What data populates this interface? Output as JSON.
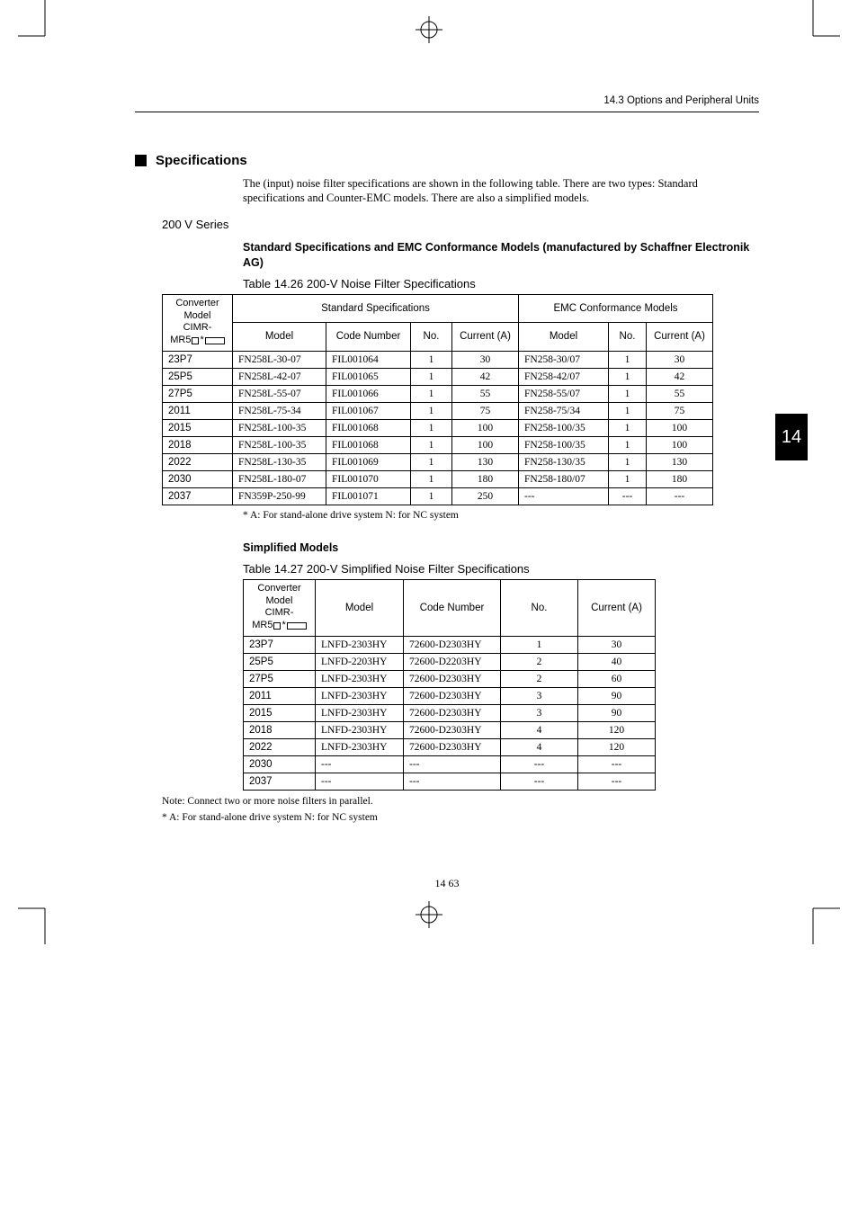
{
  "header": {
    "section_ref": "14.3 Options and Peripheral Units"
  },
  "section": {
    "title": "Specifications"
  },
  "intro": "The (input) noise filter specifications are shown in the following table. There are two types: Standard specifications and Counter-EMC models. There are also a simplified models.",
  "series_label": "200 V Series",
  "table1": {
    "subhead": "Standard Specifications and EMC Conformance Models (manufactured by Schaffner Electronik AG)",
    "caption": "Table 14.26  200-V Noise Filter Specifications",
    "group_headers": {
      "std": "Standard Specifications",
      "emc": "EMC Conformance Models"
    },
    "col_headers": {
      "converter_l1": "Converter",
      "converter_l2": "Model",
      "converter_l3": "CIMR-",
      "converter_l4_prefix": "MR5",
      "model": "Model",
      "code": "Code Number",
      "no": "No.",
      "current": "Current (A)"
    },
    "rows": [
      {
        "conv": "23P7",
        "std_model": "FN258L-30-07",
        "std_code": "FIL001064",
        "std_no": "1",
        "std_cur": "30",
        "emc_model": "FN258-30/07",
        "emc_no": "1",
        "emc_cur": "30"
      },
      {
        "conv": "25P5",
        "std_model": "FN258L-42-07",
        "std_code": "FIL001065",
        "std_no": "1",
        "std_cur": "42",
        "emc_model": "FN258-42/07",
        "emc_no": "1",
        "emc_cur": "42"
      },
      {
        "conv": "27P5",
        "std_model": "FN258L-55-07",
        "std_code": "FIL001066",
        "std_no": "1",
        "std_cur": "55",
        "emc_model": "FN258-55/07",
        "emc_no": "1",
        "emc_cur": "55"
      },
      {
        "conv": "2011",
        "std_model": "FN258L-75-34",
        "std_code": "FIL001067",
        "std_no": "1",
        "std_cur": "75",
        "emc_model": "FN258-75/34",
        "emc_no": "1",
        "emc_cur": "75"
      },
      {
        "conv": "2015",
        "std_model": "FN258L-100-35",
        "std_code": "FIL001068",
        "std_no": "1",
        "std_cur": "100",
        "emc_model": "FN258-100/35",
        "emc_no": "1",
        "emc_cur": "100"
      },
      {
        "conv": "2018",
        "std_model": "FN258L-100-35",
        "std_code": "FIL001068",
        "std_no": "1",
        "std_cur": "100",
        "emc_model": "FN258-100/35",
        "emc_no": "1",
        "emc_cur": "100"
      },
      {
        "conv": "2022",
        "std_model": "FN258L-130-35",
        "std_code": "FIL001069",
        "std_no": "1",
        "std_cur": "130",
        "emc_model": "FN258-130/35",
        "emc_no": "1",
        "emc_cur": "130"
      },
      {
        "conv": "2030",
        "std_model": "FN258L-180-07",
        "std_code": "FIL001070",
        "std_no": "1",
        "std_cur": "180",
        "emc_model": "FN258-180/07",
        "emc_no": "1",
        "emc_cur": "180"
      },
      {
        "conv": "2037",
        "std_model": "FN359P-250-99",
        "std_code": "FIL001071",
        "std_no": "1",
        "std_cur": "250",
        "emc_model": "---",
        "emc_no": "---",
        "emc_cur": "---"
      }
    ],
    "footnote": "*   A: For stand-alone drive system  N: for NC system"
  },
  "table2": {
    "subhead": "Simplified Models",
    "caption": "Table 14.27  200-V Simplified Noise Filter Specifications",
    "col_headers": {
      "converter_l1": "Converter",
      "converter_l2": "Model",
      "converter_l3": "CIMR-",
      "converter_l4_prefix": "MR5",
      "model": "Model",
      "code": "Code Number",
      "no": "No.",
      "current": "Current (A)"
    },
    "rows": [
      {
        "conv": "23P7",
        "model": "LNFD-2303HY",
        "code": "72600-D2303HY",
        "no": "1",
        "cur": "30"
      },
      {
        "conv": "25P5",
        "model": "LNFD-2203HY",
        "code": "72600-D2203HY",
        "no": "2",
        "cur": "40"
      },
      {
        "conv": "27P5",
        "model": "LNFD-2303HY",
        "code": "72600-D2303HY",
        "no": "2",
        "cur": "60"
      },
      {
        "conv": "2011",
        "model": "LNFD-2303HY",
        "code": "72600-D2303HY",
        "no": "3",
        "cur": "90"
      },
      {
        "conv": "2015",
        "model": "LNFD-2303HY",
        "code": "72600-D2303HY",
        "no": "3",
        "cur": "90"
      },
      {
        "conv": "2018",
        "model": "LNFD-2303HY",
        "code": "72600-D2303HY",
        "no": "4",
        "cur": "120"
      },
      {
        "conv": "2022",
        "model": "LNFD-2303HY",
        "code": "72600-D2303HY",
        "no": "4",
        "cur": "120"
      },
      {
        "conv": "2030",
        "model": "---",
        "code": "---",
        "no": "---",
        "cur": "---"
      },
      {
        "conv": "2037",
        "model": "---",
        "code": "---",
        "no": "---",
        "cur": "---"
      }
    ],
    "note": "Note:  Connect two or more noise filters in parallel.",
    "footnote": "*   A: For stand-alone drive system  N: for NC system"
  },
  "page_tab": "14",
  "page_number": "14 63"
}
